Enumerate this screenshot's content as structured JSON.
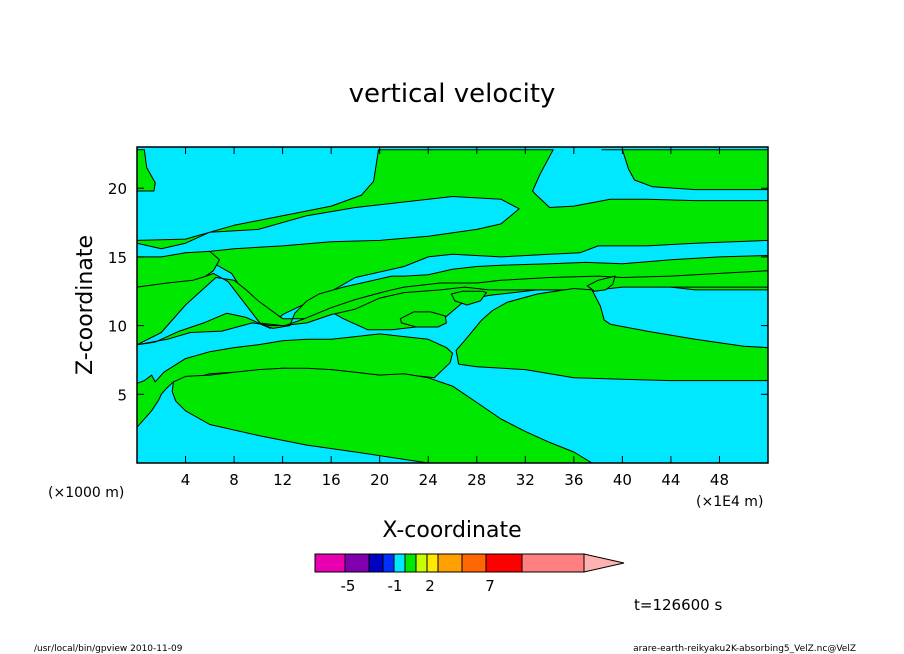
{
  "chart_data": {
    "type": "contour",
    "title": "vertical velocity",
    "xlabel": "X-coordinate",
    "ylabel": "Z-coordinate",
    "x_unit_label": "(×1E4 m)",
    "y_unit_label": "(×1000 m)",
    "xlim": [
      0,
      52
    ],
    "ylim": [
      0,
      23
    ],
    "x_ticks": [
      "4",
      "8",
      "12",
      "16",
      "20",
      "24",
      "28",
      "32",
      "36",
      "40",
      "44",
      "48"
    ],
    "y_ticks": [
      "5",
      "10",
      "15",
      "20"
    ],
    "time_label": "t=126600 s",
    "colors": {
      "field_negative_small": "#00e8ff",
      "field_positive_small": "#00e800",
      "contour_line": "#000000"
    },
    "colorbar": {
      "segment_colors": [
        "#e800b0",
        "#8000b0",
        "#0000c0",
        "#0030ff",
        "#00e8ff",
        "#00e800",
        "#c8ff00",
        "#ffe800",
        "#ffa000",
        "#ff6800",
        "#ff0000",
        "#ff8080",
        "#ffb0b0"
      ],
      "tick_labels": [
        "-5",
        "-1",
        "2",
        "7"
      ]
    },
    "regions": [
      {
        "level": "positive",
        "color": "#00e800",
        "polygon": [
          [
            0,
            22.8
          ],
          [
            0.6,
            22.8
          ],
          [
            0.8,
            21.5
          ],
          [
            1.5,
            20.4
          ],
          [
            1.4,
            19.8
          ],
          [
            0,
            19.8
          ]
        ]
      },
      {
        "level": "positive",
        "color": "#00e800",
        "polygon": [
          [
            0,
            16.2
          ],
          [
            4,
            16.3
          ],
          [
            8,
            17.3
          ],
          [
            12,
            18.0
          ],
          [
            16,
            18.7
          ],
          [
            18.5,
            19.5
          ],
          [
            19.5,
            20.5
          ],
          [
            19.9,
            22.8
          ],
          [
            34.3,
            22.8
          ],
          [
            33.2,
            21
          ],
          [
            32.6,
            19.8
          ],
          [
            32.8,
            19.6
          ],
          [
            34,
            18.6
          ],
          [
            36,
            18.7
          ],
          [
            39,
            19.2
          ],
          [
            42,
            19.2
          ],
          [
            46,
            19.1
          ],
          [
            52,
            19.1
          ],
          [
            52,
            16.2
          ],
          [
            46,
            16.0
          ],
          [
            42,
            15.8
          ],
          [
            38,
            15.8
          ],
          [
            36.5,
            15.3
          ],
          [
            34,
            15.2
          ],
          [
            30,
            15.0
          ],
          [
            26,
            15.2
          ],
          [
            24,
            15.0
          ],
          [
            22,
            14.3
          ],
          [
            18,
            13.5
          ],
          [
            16,
            12.5
          ],
          [
            12,
            10.8
          ],
          [
            11.4,
            10.3
          ],
          [
            11,
            9.8
          ],
          [
            10.2,
            10.1
          ],
          [
            9.8,
            11.0
          ],
          [
            7.8,
            13.8
          ],
          [
            6,
            14.7
          ],
          [
            6,
            15.4
          ],
          [
            8,
            15.6
          ],
          [
            12,
            15.8
          ],
          [
            16,
            16.1
          ],
          [
            20,
            16.2
          ],
          [
            24,
            16.5
          ],
          [
            28,
            17.0
          ],
          [
            30,
            17.4
          ],
          [
            31.5,
            18.5
          ],
          [
            30,
            19.2
          ],
          [
            26,
            19.4
          ],
          [
            22,
            19.0
          ],
          [
            18,
            18.6
          ],
          [
            14,
            18.0
          ],
          [
            10,
            17.0
          ],
          [
            6,
            16.8
          ],
          [
            4,
            16.0
          ],
          [
            2,
            15.6
          ],
          [
            0,
            16.0
          ]
        ]
      },
      {
        "level": "positive",
        "color": "#00e800",
        "polygon": [
          [
            0,
            12.8
          ],
          [
            4,
            13.1
          ],
          [
            5.5,
            13.5
          ],
          [
            6.3,
            14.0
          ],
          [
            6.8,
            14.8
          ],
          [
            6,
            15.4
          ],
          [
            4,
            15.3
          ],
          [
            2,
            15.0
          ],
          [
            0,
            15.0
          ]
        ]
      },
      {
        "level": "positive",
        "color": "#00e800",
        "polygon": [
          [
            38.3,
            22.8
          ],
          [
            40,
            22.8
          ],
          [
            40.5,
            21.4
          ],
          [
            41,
            20.6
          ],
          [
            42.5,
            20.1
          ],
          [
            46,
            19.9
          ],
          [
            52,
            19.9
          ],
          [
            52,
            22.8
          ]
        ]
      },
      {
        "level": "positive",
        "color": "#00e800",
        "polygon": [
          [
            0,
            12.8
          ],
          [
            2.5,
            13.1
          ],
          [
            4.6,
            13.3
          ],
          [
            5.7,
            13.6
          ],
          [
            6.3,
            13.8
          ],
          [
            7.5,
            13.2
          ],
          [
            10.2,
            10.1
          ],
          [
            11.2,
            9.8
          ],
          [
            12.6,
            10.0
          ],
          [
            13,
            10.9
          ],
          [
            14,
            11.8
          ],
          [
            15,
            12.3
          ],
          [
            17,
            12.8
          ],
          [
            19,
            13.2
          ],
          [
            21,
            13.6
          ],
          [
            22,
            13.6
          ],
          [
            24,
            13.7
          ],
          [
            26,
            14.1
          ],
          [
            28,
            14.3
          ],
          [
            30,
            14.4
          ],
          [
            34,
            14.5
          ],
          [
            37,
            14.6
          ],
          [
            40,
            14.5
          ],
          [
            44,
            14.8
          ],
          [
            48,
            15.0
          ],
          [
            52,
            15.1
          ],
          [
            52,
            12.6
          ],
          [
            46,
            12.6
          ],
          [
            44,
            12.8
          ],
          [
            42,
            13.0
          ],
          [
            40,
            13.1
          ],
          [
            38.5,
            13.1
          ],
          [
            37.5,
            13.0
          ],
          [
            35.5,
            12.6
          ],
          [
            33,
            12.6
          ],
          [
            31,
            12.4
          ],
          [
            29,
            12.2
          ],
          [
            27,
            11.8
          ],
          [
            25,
            10.3
          ],
          [
            23,
            9.9
          ],
          [
            21,
            9.7
          ],
          [
            19,
            9.7
          ],
          [
            17,
            10.5
          ],
          [
            16,
            11.0
          ],
          [
            14,
            10.5
          ],
          [
            12,
            10.5
          ],
          [
            10,
            11.8
          ],
          [
            9,
            12.6
          ],
          [
            8,
            13.3
          ],
          [
            6.5,
            13.5
          ],
          [
            4,
            11.5
          ],
          [
            2,
            9.5
          ],
          [
            0,
            8.6
          ]
        ]
      },
      {
        "level": "positive",
        "color": "#00e800",
        "polygon": [
          [
            0,
            8.6
          ],
          [
            2.5,
            9.0
          ],
          [
            4.4,
            9.5
          ],
          [
            7,
            9.6
          ],
          [
            9.5,
            10.2
          ],
          [
            11,
            10.0
          ],
          [
            12.2,
            10.0
          ],
          [
            13.8,
            10.5
          ],
          [
            16,
            11.3
          ],
          [
            18,
            11.9
          ],
          [
            20.5,
            12.5
          ],
          [
            22,
            12.8
          ],
          [
            25,
            13.1
          ],
          [
            28,
            13.1
          ],
          [
            30,
            13.3
          ],
          [
            34,
            13.5
          ],
          [
            38,
            13.6
          ],
          [
            40,
            13.5
          ],
          [
            44,
            13.6
          ],
          [
            48,
            13.8
          ],
          [
            52,
            14.0
          ],
          [
            52,
            12.8
          ],
          [
            40,
            12.8
          ],
          [
            38,
            12.6
          ],
          [
            34,
            12.6
          ],
          [
            32,
            12.6
          ],
          [
            29,
            12.6
          ],
          [
            27,
            12.8
          ],
          [
            25,
            12.6
          ],
          [
            22,
            12.4
          ],
          [
            20,
            12.0
          ],
          [
            18,
            11.2
          ],
          [
            16,
            10.8
          ],
          [
            14,
            10.2
          ],
          [
            12,
            10.0
          ],
          [
            10,
            10.2
          ],
          [
            9,
            10.6
          ],
          [
            7.4,
            10.9
          ],
          [
            5.5,
            10.2
          ],
          [
            3.5,
            9.6
          ],
          [
            1.5,
            8.8
          ],
          [
            0,
            8.6
          ]
        ]
      },
      {
        "level": "positive",
        "color": "#00e800",
        "polygon": [
          [
            0,
            8.4
          ],
          [
            0,
            5.8
          ],
          [
            0.6,
            6.0
          ],
          [
            1.2,
            6.4
          ],
          [
            1.5,
            5.9
          ],
          [
            2.2,
            6.6
          ],
          [
            4,
            7.6
          ],
          [
            6,
            8.1
          ],
          [
            8,
            8.4
          ],
          [
            10,
            8.6
          ],
          [
            12,
            8.9
          ],
          [
            14,
            9.0
          ],
          [
            16,
            9.0
          ],
          [
            18,
            9.2
          ],
          [
            20,
            9.4
          ],
          [
            22,
            9.2
          ],
          [
            24,
            9.0
          ],
          [
            25.5,
            8.4
          ],
          [
            26,
            8.0
          ],
          [
            25.8,
            7.3
          ],
          [
            24.5,
            6.2
          ],
          [
            23.5,
            6.3
          ],
          [
            22.5,
            6.4
          ],
          [
            20,
            6.4
          ],
          [
            16,
            6.8
          ],
          [
            12,
            6.9
          ],
          [
            8,
            6.6
          ],
          [
            6,
            6.5
          ],
          [
            4,
            6.0
          ],
          [
            3,
            5.9
          ],
          [
            2.4,
            5.4
          ],
          [
            2,
            5.0
          ],
          [
            1.8,
            4.6
          ],
          [
            1.5,
            4.2
          ],
          [
            1.2,
            3.8
          ],
          [
            0,
            2.6
          ]
        ]
      },
      {
        "level": "positive",
        "color": "#00e800",
        "polygon": [
          [
            3,
            5.9
          ],
          [
            4,
            6.3
          ],
          [
            6,
            6.4
          ],
          [
            8,
            6.6
          ],
          [
            10,
            6.8
          ],
          [
            12,
            6.9
          ],
          [
            14,
            6.9
          ],
          [
            16,
            6.8
          ],
          [
            18,
            6.6
          ],
          [
            20,
            6.4
          ],
          [
            22,
            6.5
          ],
          [
            24,
            6.2
          ],
          [
            26,
            5.6
          ],
          [
            28,
            4.4
          ],
          [
            30,
            3.2
          ],
          [
            32,
            2.3
          ],
          [
            34,
            1.5
          ],
          [
            36,
            0.8
          ],
          [
            37.5,
            0
          ],
          [
            24,
            0
          ],
          [
            18,
            0.8
          ],
          [
            14,
            1.3
          ],
          [
            10,
            2.0
          ],
          [
            6,
            2.8
          ],
          [
            4,
            3.8
          ],
          [
            3.2,
            4.5
          ],
          [
            2.9,
            5.2
          ]
        ]
      },
      {
        "level": "positive",
        "color": "#00e800",
        "polygon": [
          [
            26.3,
            8.2
          ],
          [
            27.0,
            8.9
          ],
          [
            28.4,
            10.4
          ],
          [
            29.3,
            11.1
          ],
          [
            30.5,
            11.7
          ],
          [
            33,
            12.3
          ],
          [
            36,
            12.7
          ],
          [
            37.5,
            12.6
          ],
          [
            38.2,
            11.4
          ],
          [
            38.5,
            10.4
          ],
          [
            39,
            10.1
          ],
          [
            42,
            9.6
          ],
          [
            46,
            9.0
          ],
          [
            50,
            8.5
          ],
          [
            52,
            8.4
          ],
          [
            52,
            6.0
          ],
          [
            48,
            6.0
          ],
          [
            44,
            6.0
          ],
          [
            40,
            6.1
          ],
          [
            36,
            6.2
          ],
          [
            32,
            6.8
          ],
          [
            28,
            7.0
          ],
          [
            26.5,
            7.2
          ]
        ]
      },
      {
        "level": "positive",
        "color": "#00e800",
        "polygon": [
          [
            21.7,
            10.5
          ],
          [
            22.8,
            11.0
          ],
          [
            24.2,
            11.0
          ],
          [
            25.4,
            10.7
          ],
          [
            25.5,
            10.2
          ],
          [
            24.8,
            9.9
          ],
          [
            23,
            9.9
          ],
          [
            21.8,
            10.2
          ]
        ]
      },
      {
        "level": "positive",
        "color": "#00e800",
        "polygon": [
          [
            25.9,
            12.3
          ],
          [
            26.8,
            12.5
          ],
          [
            28.5,
            12.5
          ],
          [
            28.8,
            12.4
          ],
          [
            28.3,
            11.8
          ],
          [
            27.2,
            11.5
          ],
          [
            26.2,
            11.8
          ]
        ]
      },
      {
        "level": "positive",
        "color": "#00e800",
        "polygon": [
          [
            37.1,
            12.9
          ],
          [
            38,
            13.3
          ],
          [
            39.4,
            13.6
          ],
          [
            39.2,
            13.0
          ],
          [
            38.6,
            12.6
          ],
          [
            37.7,
            12.5
          ]
        ]
      }
    ]
  },
  "footer": {
    "left": "/usr/local/bin/gpview  2010-11-09",
    "right": "arare-earth-reikyaku2K-absorbing5_VelZ.nc@VelZ"
  }
}
